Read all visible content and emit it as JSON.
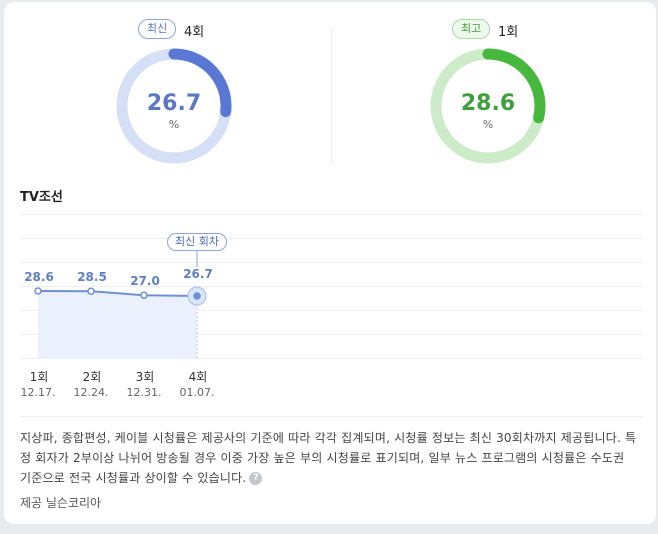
{
  "summary": {
    "latest": {
      "badge": "최신",
      "count": "4회",
      "value": "26.7",
      "unit": "%",
      "fraction": 0.267,
      "color": "#5878d4",
      "track": "#d5dff5"
    },
    "best": {
      "badge": "최고",
      "count": "1회",
      "value": "28.6",
      "unit": "%",
      "fraction": 0.286,
      "color": "#47b83e",
      "track": "#cdebc9"
    }
  },
  "section": {
    "title": "TV조선"
  },
  "chart_data": {
    "type": "line",
    "categories": [
      "1회",
      "2회",
      "3회",
      "4회"
    ],
    "dates": [
      "12.17.",
      "12.24.",
      "12.31.",
      "01.07."
    ],
    "values": [
      28.6,
      28.5,
      27.0,
      26.7
    ],
    "value_labels": [
      "28.6",
      "28.5",
      "27.0",
      "26.7"
    ],
    "highlight_label": "최신 회차",
    "highlight_index": 3,
    "line_color": "#6f8fd6",
    "fill_color": "#eaf1fc"
  },
  "note": {
    "text": "지상파, 종합편성, 케이블 시청률은 제공사의 기준에 따라 각각 집계되며, 시청률 정보는 최신 30회차까지 제공됩니다. 특정 회자가 2부이상 나뉘어 방송될 경우 이중 가장 높은 부의 시청률로 표기되며, 일부 뉴스 프로그램의 시청률은 수도권 기준으로 전국 시청률과 상이할 수 있습니다.",
    "help_icon": "question-icon",
    "help_glyph": "?"
  },
  "source": {
    "text": "제공 닐슨코리아"
  }
}
